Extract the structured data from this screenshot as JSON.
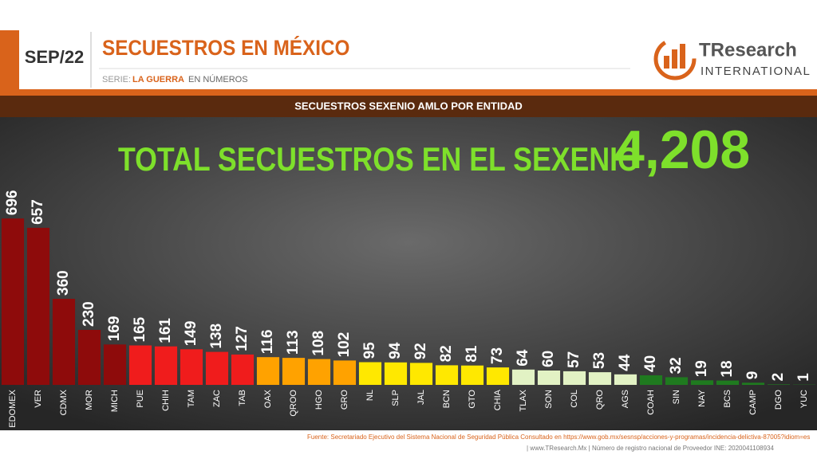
{
  "chart_data": {
    "type": "bar",
    "date": "SEP/22",
    "title": "SECUESTROS EN MÉXICO",
    "series_prefix": "SERIE:",
    "series_name": "LA GUERRA",
    "series_suffix": "EN NÚMEROS",
    "logo_main": "TResearch",
    "logo_sub": "INTERNATIONAL",
    "subtitle": "SECUESTROS SEXENIO AMLO POR ENTIDAD",
    "annotation": "TOTAL SECUESTROS EN EL SEXENIO",
    "total": "4,208",
    "source": "Fuente: Secretariado Ejecutivo del Sistema Nacional de Seguridad Pública  Consultado en https://www.gob.mx/sesnsp/acciones-y-programas/incidencia-delictiva-87005?idiom=es",
    "credit": "| www.TResearch.Mx | Número de registro nacional de Proveedor INE: 2020041108934",
    "categories": [
      "EDOMEX",
      "VER",
      "CDMX",
      "MOR",
      "MICH",
      "PUE",
      "CHIH",
      "TAM",
      "ZAC",
      "TAB",
      "OAX",
      "QROO",
      "HGO",
      "GRO",
      "NL",
      "SLP",
      "JAL",
      "BCN",
      "GTO",
      "CHIA",
      "TLAX",
      "SON",
      "COL",
      "QRO",
      "AGS",
      "COAH",
      "SIN",
      "NAY",
      "BCS",
      "CAMP",
      "DGO",
      "YUC"
    ],
    "values": [
      696,
      657,
      360,
      230,
      169,
      165,
      161,
      149,
      138,
      127,
      116,
      113,
      108,
      102,
      95,
      94,
      92,
      82,
      81,
      73,
      64,
      60,
      57,
      53,
      44,
      40,
      32,
      19,
      18,
      9,
      2,
      1
    ],
    "colors": [
      "#8e0b0b",
      "#8e0b0b",
      "#8e0b0b",
      "#8e0b0b",
      "#8e0b0b",
      "#f01c1c",
      "#f01c1c",
      "#f01c1c",
      "#f01c1c",
      "#f01c1c",
      "#ffa200",
      "#ffa200",
      "#ffa200",
      "#ffa200",
      "#ffe800",
      "#ffe800",
      "#ffe800",
      "#ffe800",
      "#ffe800",
      "#ffe800",
      "#e2f2c4",
      "#e2f2c4",
      "#e2f2c4",
      "#e2f2c4",
      "#e2f2c4",
      "#1f7a1f",
      "#1f7a1f",
      "#1f7a1f",
      "#1f7a1f",
      "#1f7a1f",
      "#1f7a1f",
      "#1f7a1f"
    ]
  }
}
